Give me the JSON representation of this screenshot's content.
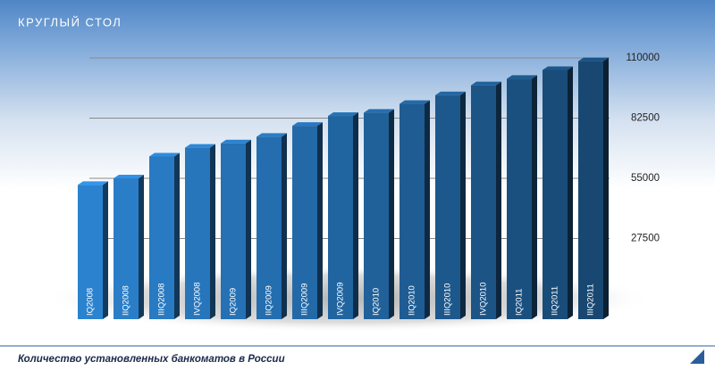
{
  "header": "КРУГЛЫЙ СТОЛ",
  "chart_data": {
    "type": "bar",
    "title": "Количество установленных банкоматов в России",
    "categories": [
      "IQ2008",
      "IIQ2008",
      "IIIQ2008",
      "IVQ2008",
      "IQ2009",
      "IIQ2009",
      "IIIQ2009",
      "IVQ2009",
      "IQ2010",
      "IIQ2010",
      "IIIQ2010",
      "IVQ2010",
      "IQ2011",
      "IIQ2011",
      "IIIQ2011"
    ],
    "values": [
      52000,
      55000,
      65000,
      69000,
      71000,
      74000,
      79000,
      83500,
      85000,
      89000,
      93000,
      97500,
      100500,
      104500,
      108500
    ],
    "color": "#2b82cf",
    "ylim": [
      0,
      110000
    ],
    "yticks": [
      27500,
      55000,
      82500,
      110000
    ],
    "grid": true
  }
}
